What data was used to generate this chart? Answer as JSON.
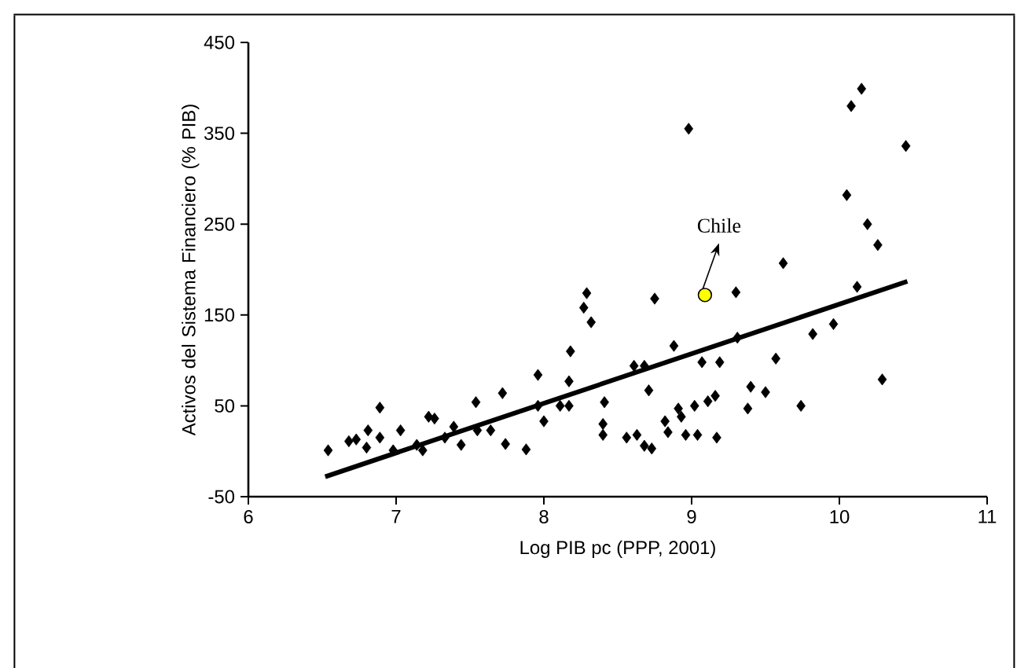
{
  "chart_data": {
    "type": "scatter",
    "xlabel": "Log PIB pc (PPP, 2001)",
    "ylabel": "Activos del Sistema Financiero (% PIB)",
    "xlim": [
      6,
      11
    ],
    "xticks": [
      6,
      7,
      8,
      9,
      10,
      11
    ],
    "ylim": [
      -50,
      450
    ],
    "yticks": [
      -50,
      50,
      150,
      250,
      350,
      450
    ],
    "grid": false,
    "annotations": [
      {
        "text": "Chile",
        "x": 9.09,
        "y": 172
      }
    ],
    "series": [
      {
        "type": "scatter",
        "marker": "diamond",
        "color": "#000000",
        "x": [
          6.54,
          6.68,
          6.73,
          6.8,
          6.81,
          6.89,
          6.89,
          6.98,
          7.03,
          7.14,
          7.18,
          7.22,
          7.26,
          7.33,
          7.39,
          7.44,
          7.54,
          7.55,
          7.64,
          7.72,
          7.74,
          7.88,
          7.96,
          7.96,
          8.0,
          8.11,
          8.17,
          8.17,
          8.18,
          8.27,
          8.29,
          8.32,
          8.41,
          8.4,
          8.4,
          8.56,
          8.63,
          8.68,
          8.73,
          8.61,
          8.68,
          8.71,
          8.75,
          8.82,
          8.84,
          8.88,
          8.91,
          8.93,
          8.96,
          8.98,
          9.02,
          9.04,
          9.07,
          9.11,
          9.16,
          9.17,
          9.19,
          9.3,
          9.31,
          9.38,
          9.4,
          9.5,
          9.57,
          9.62,
          9.74,
          9.82,
          9.96,
          10.05,
          10.08,
          10.12,
          10.15,
          10.19,
          10.26,
          10.29,
          10.45
        ],
        "values": [
          1,
          11,
          13,
          4,
          23,
          15,
          48,
          1,
          23,
          7,
          1,
          38,
          36,
          15,
          27,
          7,
          54,
          23,
          23,
          64,
          8,
          2,
          84,
          50,
          33,
          50,
          50,
          77,
          110,
          158,
          174,
          142,
          54,
          30,
          18,
          15,
          18,
          6,
          3,
          94,
          94,
          67,
          168,
          33,
          21,
          116,
          47,
          38,
          18,
          355,
          50,
          18,
          98,
          55,
          61,
          15,
          98,
          175,
          125,
          47,
          71,
          65,
          102,
          207,
          50,
          129,
          140,
          282,
          380,
          181,
          399,
          250,
          227,
          79,
          336
        ]
      },
      {
        "type": "line",
        "marker": "none",
        "color": "#000000",
        "x": [
          6.52,
          10.46
        ],
        "values": [
          -28,
          187
        ]
      },
      {
        "type": "scatter",
        "marker": "circle",
        "color": "#ffff00",
        "x": [
          9.09
        ],
        "values": [
          172
        ]
      }
    ]
  }
}
